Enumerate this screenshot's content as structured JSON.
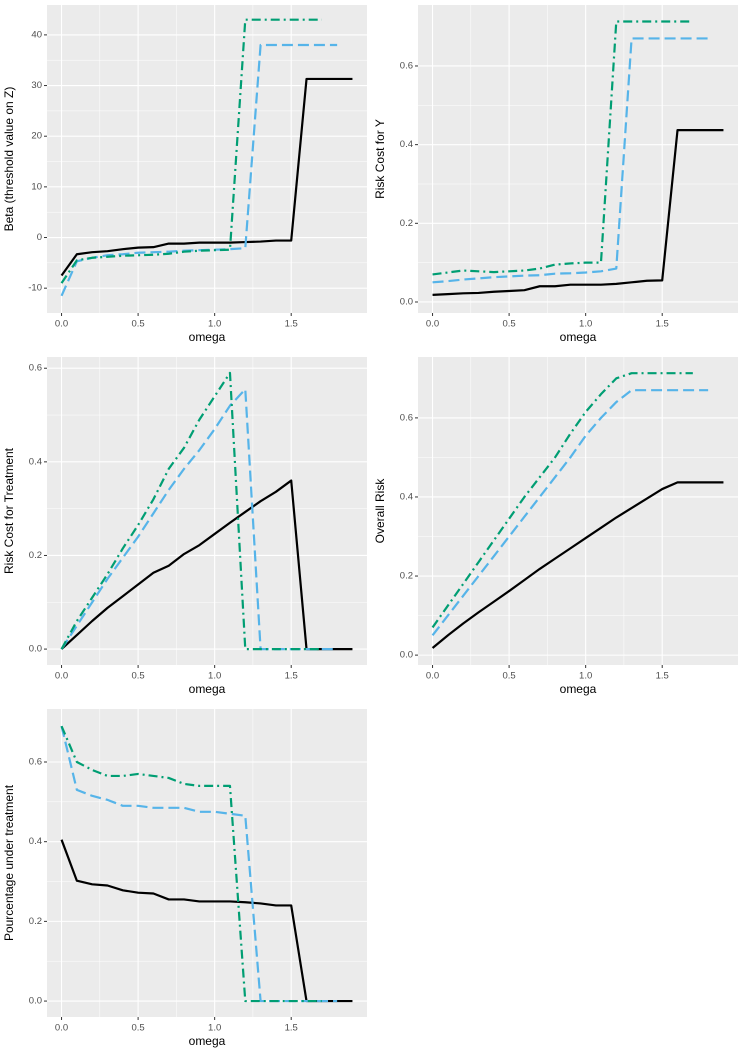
{
  "chart_data": [
    {
      "type": "line",
      "x_label": "omega",
      "y_label": "Beta (threshold value on Z)",
      "x": [
        0,
        0.1,
        0.2,
        0.3,
        0.4,
        0.5,
        0.6,
        0.7,
        0.8,
        0.9,
        1,
        1.1,
        1.2,
        1.3,
        1.4,
        1.5,
        1.6,
        1.7,
        1.8,
        1.9
      ],
      "xlim": [
        -0.095,
        1.995
      ],
      "xticks": [
        {
          "value": 0,
          "label": "0.0"
        },
        {
          "value": 0.5,
          "label": "0.5"
        },
        {
          "value": 1,
          "label": "1.0"
        },
        {
          "value": 1.5,
          "label": "1.5"
        }
      ],
      "ylim": [
        -14.9,
        45.9
      ],
      "yticks": [
        -10,
        0,
        10,
        20,
        30,
        40
      ],
      "grid": true,
      "series": [
        {
          "color": "#000000",
          "linetype": "solid",
          "values": [
            -7.5,
            -3.3,
            -2.9,
            -2.7,
            -2.3,
            -2.0,
            -1.9,
            -1.2,
            -1.2,
            -1.0,
            -1.0,
            -1.0,
            -0.9,
            -0.8,
            -0.6,
            -0.6,
            31.3,
            31.3,
            31.3,
            31.3
          ]
        },
        {
          "color": "#56b4e9",
          "linetype": "dashed",
          "values": [
            -11.5,
            -4.7,
            -4.0,
            -3.5,
            -3.3,
            -3.0,
            -2.9,
            -2.8,
            -2.6,
            -2.5,
            -2.4,
            -2.3,
            -2.1,
            38,
            38,
            38,
            38,
            38,
            38,
            null
          ]
        },
        {
          "color": "#009e73",
          "linetype": "dotdash",
          "values": [
            -9.0,
            -4.5,
            -4.0,
            -3.8,
            -3.6,
            -3.5,
            -3.4,
            -3.2,
            -2.8,
            -2.6,
            -2.5,
            -2.4,
            43,
            43,
            43,
            43,
            43,
            43,
            null,
            null
          ]
        }
      ]
    },
    {
      "type": "line",
      "x_label": "omega",
      "y_label": "Risk Cost for Y",
      "x": [
        0,
        0.1,
        0.2,
        0.3,
        0.4,
        0.5,
        0.6,
        0.7,
        0.8,
        0.9,
        1,
        1.1,
        1.2,
        1.3,
        1.4,
        1.5,
        1.6,
        1.7,
        1.8,
        1.9
      ],
      "xlim": [
        -0.095,
        1.995
      ],
      "xticks": [
        {
          "value": 0,
          "label": "0.0"
        },
        {
          "value": 0.5,
          "label": "0.5"
        },
        {
          "value": 1,
          "label": "1.0"
        },
        {
          "value": 1.5,
          "label": "1.5"
        }
      ],
      "ylim": [
        -0.028,
        0.755
      ],
      "yticks": [
        {
          "value": 0,
          "label": "0.0"
        },
        0.2,
        0.4,
        0.6
      ],
      "grid": true,
      "series": [
        {
          "color": "#000000",
          "linetype": "solid",
          "values": [
            0.018,
            0.02,
            0.022,
            0.023,
            0.026,
            0.028,
            0.03,
            0.04,
            0.04,
            0.044,
            0.044,
            0.044,
            0.046,
            0.05,
            0.054,
            0.055,
            0.437,
            0.437,
            0.437,
            0.437
          ]
        },
        {
          "color": "#56b4e9",
          "linetype": "dashed",
          "values": [
            0.05,
            0.053,
            0.057,
            0.06,
            0.063,
            0.065,
            0.067,
            0.068,
            0.072,
            0.073,
            0.075,
            0.078,
            0.085,
            0.67,
            0.67,
            0.67,
            0.67,
            0.67,
            0.67,
            null
          ]
        },
        {
          "color": "#009e73",
          "linetype": "dotdash",
          "values": [
            0.07,
            0.075,
            0.08,
            0.078,
            0.076,
            0.078,
            0.08,
            0.085,
            0.095,
            0.098,
            0.1,
            0.1,
            0.713,
            0.713,
            0.713,
            0.713,
            0.713,
            0.713,
            null,
            null
          ]
        }
      ]
    },
    {
      "type": "line",
      "x_label": "omega",
      "y_label": "Risk Cost for Treatment",
      "x": [
        0,
        0.1,
        0.2,
        0.3,
        0.4,
        0.5,
        0.6,
        0.7,
        0.8,
        0.9,
        1,
        1.1,
        1.2,
        1.3,
        1.4,
        1.5,
        1.6,
        1.7,
        1.8,
        1.9
      ],
      "xlim": [
        -0.095,
        1.995
      ],
      "xticks": [
        {
          "value": 0,
          "label": "0.0"
        },
        {
          "value": 0.5,
          "label": "0.5"
        },
        {
          "value": 1,
          "label": "1.0"
        },
        {
          "value": 1.5,
          "label": "1.5"
        }
      ],
      "ylim": [
        -0.034,
        0.624
      ],
      "yticks": [
        {
          "value": 0,
          "label": "0.0"
        },
        0.2,
        0.4,
        0.6
      ],
      "grid": true,
      "series": [
        {
          "color": "#000000",
          "linetype": "solid",
          "values": [
            0,
            0.03,
            0.06,
            0.088,
            0.113,
            0.138,
            0.163,
            0.178,
            0.203,
            0.222,
            0.246,
            0.27,
            0.293,
            0.316,
            0.336,
            0.36,
            0,
            0,
            0,
            0
          ]
        },
        {
          "color": "#56b4e9",
          "linetype": "dashed",
          "values": [
            0,
            0.05,
            0.1,
            0.15,
            0.195,
            0.24,
            0.29,
            0.34,
            0.385,
            0.425,
            0.47,
            0.52,
            0.555,
            0,
            0,
            0,
            0,
            0,
            0,
            null
          ]
        },
        {
          "color": "#009e73",
          "linetype": "dotdash",
          "values": [
            0,
            0.06,
            0.11,
            0.16,
            0.215,
            0.265,
            0.32,
            0.385,
            0.43,
            0.49,
            0.54,
            0.59,
            0,
            0,
            0,
            0,
            0,
            0,
            null,
            null
          ]
        }
      ]
    },
    {
      "type": "line",
      "x_label": "omega",
      "y_label": "Overall Risk",
      "x": [
        0,
        0.1,
        0.2,
        0.3,
        0.4,
        0.5,
        0.6,
        0.7,
        0.8,
        0.9,
        1,
        1.1,
        1.2,
        1.3,
        1.4,
        1.5,
        1.6,
        1.7,
        1.8,
        1.9
      ],
      "xlim": [
        -0.095,
        1.995
      ],
      "xticks": [
        {
          "value": 0,
          "label": "0.0"
        },
        {
          "value": 0.5,
          "label": "0.5"
        },
        {
          "value": 1,
          "label": "1.0"
        },
        {
          "value": 1.5,
          "label": "1.5"
        }
      ],
      "ylim": [
        -0.025,
        0.754
      ],
      "yticks": [
        {
          "value": 0,
          "label": "0.0"
        },
        0.2,
        0.4,
        0.6
      ],
      "grid": true,
      "series": [
        {
          "color": "#000000",
          "linetype": "solid",
          "values": [
            0.018,
            0.05,
            0.08,
            0.108,
            0.135,
            0.162,
            0.19,
            0.218,
            0.244,
            0.27,
            0.296,
            0.322,
            0.348,
            0.372,
            0.396,
            0.42,
            0.437,
            0.437,
            0.437,
            0.437
          ]
        },
        {
          "color": "#56b4e9",
          "linetype": "dashed",
          "values": [
            0.05,
            0.1,
            0.15,
            0.2,
            0.25,
            0.3,
            0.35,
            0.4,
            0.45,
            0.5,
            0.555,
            0.6,
            0.64,
            0.67,
            0.67,
            0.67,
            0.67,
            0.67,
            0.67,
            null
          ]
        },
        {
          "color": "#009e73",
          "linetype": "dotdash",
          "values": [
            0.07,
            0.125,
            0.18,
            0.235,
            0.29,
            0.345,
            0.4,
            0.45,
            0.5,
            0.56,
            0.615,
            0.66,
            0.7,
            0.713,
            0.713,
            0.713,
            0.713,
            0.713,
            null,
            null
          ]
        }
      ]
    },
    {
      "type": "line",
      "x_label": "omega",
      "y_label": "Pourcentage under treatment",
      "x": [
        0,
        0.1,
        0.2,
        0.3,
        0.4,
        0.5,
        0.6,
        0.7,
        0.8,
        0.9,
        1,
        1.1,
        1.2,
        1.3,
        1.4,
        1.5,
        1.6,
        1.7,
        1.8,
        1.9
      ],
      "xlim": [
        -0.095,
        1.995
      ],
      "xticks": [
        {
          "value": 0,
          "label": "0.0"
        },
        {
          "value": 0.5,
          "label": "0.5"
        },
        {
          "value": 1,
          "label": "1.0"
        },
        {
          "value": 1.5,
          "label": "1.5"
        }
      ],
      "ylim": [
        -0.04,
        0.733
      ],
      "yticks": [
        {
          "value": 0,
          "label": "0.0"
        },
        0.2,
        0.4,
        0.6
      ],
      "grid": true,
      "series": [
        {
          "color": "#000000",
          "linetype": "solid",
          "values": [
            0.405,
            0.302,
            0.293,
            0.29,
            0.278,
            0.272,
            0.27,
            0.255,
            0.255,
            0.25,
            0.25,
            0.25,
            0.248,
            0.245,
            0.24,
            0.24,
            0,
            0,
            0,
            0
          ]
        },
        {
          "color": "#56b4e9",
          "linetype": "dashed",
          "values": [
            0.69,
            0.53,
            0.515,
            0.505,
            0.49,
            0.49,
            0.485,
            0.485,
            0.485,
            0.475,
            0.475,
            0.47,
            0.465,
            0,
            0,
            0,
            0,
            0,
            0,
            null
          ]
        },
        {
          "color": "#009e73",
          "linetype": "dotdash",
          "values": [
            0.69,
            0.6,
            0.58,
            0.565,
            0.565,
            0.57,
            0.565,
            0.56,
            0.545,
            0.54,
            0.54,
            0.54,
            0,
            0,
            0,
            0,
            0,
            0,
            null,
            null
          ]
        }
      ]
    }
  ]
}
